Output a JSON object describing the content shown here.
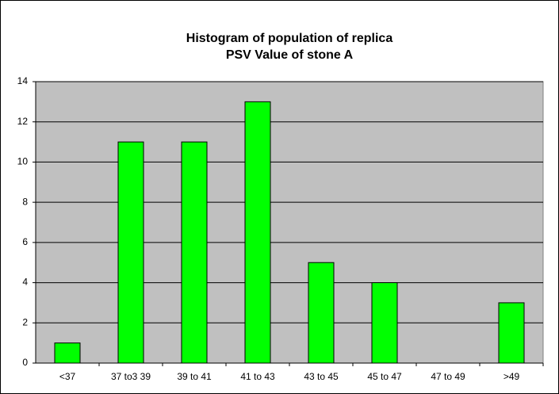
{
  "chart_data": {
    "type": "bar",
    "title": [
      "Histogram of population of replica",
      "PSV Value of stone A"
    ],
    "categories": [
      "<37",
      "37 to3 39",
      "39 to 41",
      "41 to 43",
      "43 to 45",
      "45 to 47",
      "47 to 49",
      ">49"
    ],
    "values": [
      1,
      11,
      11,
      13,
      5,
      4,
      0,
      3
    ],
    "color": "#00ff00",
    "ylim": [
      0,
      14
    ],
    "yticks": [
      0,
      2,
      4,
      6,
      8,
      10,
      12,
      14
    ],
    "grid": true
  }
}
